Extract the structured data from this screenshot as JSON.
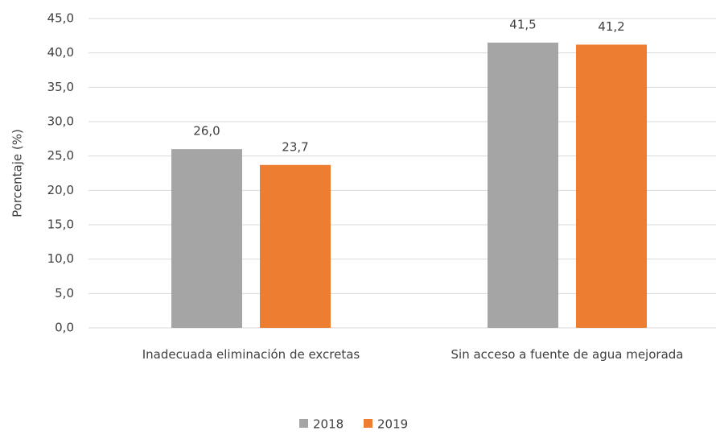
{
  "chart_data": {
    "type": "bar",
    "y_axis_label": "Porcentaje (%)",
    "categories": [
      "Inadecuada eliminación de excretas",
      "Sin acceso a fuente de agua mejorada"
    ],
    "series": [
      {
        "name": "2018",
        "color": "#a5a5a5",
        "values": [
          26.0,
          41.5
        ],
        "value_labels": [
          "26,0",
          "41,5"
        ]
      },
      {
        "name": "2019",
        "color": "#ed7d31",
        "values": [
          23.7,
          41.2
        ],
        "value_labels": [
          "23,7",
          "41,2"
        ]
      }
    ],
    "ylim": [
      0,
      45
    ],
    "yticks": [
      {
        "value": 0,
        "label": "0,0"
      },
      {
        "value": 5,
        "label": "5,0"
      },
      {
        "value": 10,
        "label": "10,0"
      },
      {
        "value": 15,
        "label": "15,0"
      },
      {
        "value": 20,
        "label": "20,0"
      },
      {
        "value": 25,
        "label": "25,0"
      },
      {
        "value": 30,
        "label": "30,0"
      },
      {
        "value": 35,
        "label": "35,0"
      },
      {
        "value": 40,
        "label": "40,0"
      },
      {
        "value": 45,
        "label": "45,0"
      }
    ],
    "grid": true,
    "legend": "bottom"
  }
}
